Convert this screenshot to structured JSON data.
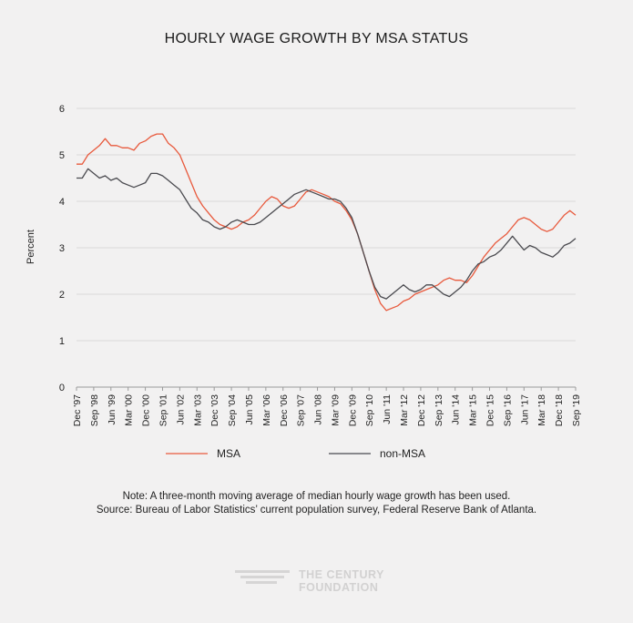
{
  "chart_data": {
    "type": "line",
    "title": "HOURLY WAGE GROWTH BY MSA STATUS",
    "xlabel": "",
    "ylabel": "Percent",
    "ylim": [
      0,
      6
    ],
    "yticks": [
      0,
      1,
      2,
      3,
      4,
      5,
      6
    ],
    "grid": "horizontal",
    "legend_position": "bottom",
    "x_start_index": 0,
    "x_end_index": 261,
    "x_tick_labels": [
      "Dec '97",
      "Sep '98",
      "Jun '99",
      "Mar '00",
      "Dec '00",
      "Sep '01",
      "Jun '02",
      "Mar '03",
      "Dec '03",
      "Sep '04",
      "Jun '05",
      "Mar '06",
      "Dec '06",
      "Sep '07",
      "Jun '08",
      "Mar '09",
      "Dec '09",
      "Sep '10",
      "Jun '11",
      "Mar '12",
      "Dec '12",
      "Sep '13",
      "Jun '14",
      "Mar '15",
      "Dec '15",
      "Sep '16",
      "Jun '17",
      "Mar '18",
      "Dec '18",
      "Sep '19"
    ],
    "series": [
      {
        "name": "MSA",
        "color": "#e8593c",
        "points": [
          [
            0,
            4.8
          ],
          [
            3,
            4.8
          ],
          [
            6,
            5.0
          ],
          [
            9,
            5.1
          ],
          [
            12,
            5.2
          ],
          [
            15,
            5.35
          ],
          [
            18,
            5.2
          ],
          [
            21,
            5.2
          ],
          [
            24,
            5.15
          ],
          [
            27,
            5.15
          ],
          [
            30,
            5.1
          ],
          [
            33,
            5.25
          ],
          [
            36,
            5.3
          ],
          [
            39,
            5.4
          ],
          [
            42,
            5.45
          ],
          [
            45,
            5.45
          ],
          [
            48,
            5.25
          ],
          [
            51,
            5.15
          ],
          [
            54,
            5.0
          ],
          [
            57,
            4.7
          ],
          [
            60,
            4.4
          ],
          [
            63,
            4.1
          ],
          [
            66,
            3.9
          ],
          [
            69,
            3.75
          ],
          [
            72,
            3.6
          ],
          [
            75,
            3.5
          ],
          [
            78,
            3.45
          ],
          [
            81,
            3.4
          ],
          [
            84,
            3.45
          ],
          [
            87,
            3.55
          ],
          [
            90,
            3.6
          ],
          [
            93,
            3.7
          ],
          [
            96,
            3.85
          ],
          [
            99,
            4.0
          ],
          [
            102,
            4.1
          ],
          [
            105,
            4.05
          ],
          [
            108,
            3.9
          ],
          [
            111,
            3.85
          ],
          [
            114,
            3.9
          ],
          [
            117,
            4.05
          ],
          [
            120,
            4.2
          ],
          [
            123,
            4.25
          ],
          [
            126,
            4.2
          ],
          [
            129,
            4.15
          ],
          [
            132,
            4.1
          ],
          [
            135,
            4.0
          ],
          [
            138,
            3.95
          ],
          [
            141,
            3.8
          ],
          [
            144,
            3.6
          ],
          [
            147,
            3.3
          ],
          [
            150,
            2.9
          ],
          [
            153,
            2.5
          ],
          [
            156,
            2.1
          ],
          [
            159,
            1.8
          ],
          [
            162,
            1.65
          ],
          [
            165,
            1.7
          ],
          [
            168,
            1.75
          ],
          [
            171,
            1.85
          ],
          [
            174,
            1.9
          ],
          [
            177,
            2.0
          ],
          [
            180,
            2.05
          ],
          [
            183,
            2.1
          ],
          [
            186,
            2.15
          ],
          [
            189,
            2.2
          ],
          [
            192,
            2.3
          ],
          [
            195,
            2.35
          ],
          [
            198,
            2.3
          ],
          [
            201,
            2.3
          ],
          [
            204,
            2.25
          ],
          [
            207,
            2.4
          ],
          [
            210,
            2.6
          ],
          [
            213,
            2.8
          ],
          [
            216,
            2.95
          ],
          [
            219,
            3.1
          ],
          [
            222,
            3.2
          ],
          [
            225,
            3.3
          ],
          [
            228,
            3.45
          ],
          [
            231,
            3.6
          ],
          [
            234,
            3.65
          ],
          [
            237,
            3.6
          ],
          [
            240,
            3.5
          ],
          [
            243,
            3.4
          ],
          [
            246,
            3.35
          ],
          [
            249,
            3.4
          ],
          [
            252,
            3.55
          ],
          [
            255,
            3.7
          ],
          [
            258,
            3.8
          ],
          [
            261,
            3.7
          ]
        ]
      },
      {
        "name": "non-MSA",
        "color": "#4a4a4f",
        "points": [
          [
            0,
            4.5
          ],
          [
            3,
            4.5
          ],
          [
            6,
            4.7
          ],
          [
            9,
            4.6
          ],
          [
            12,
            4.5
          ],
          [
            15,
            4.55
          ],
          [
            18,
            4.45
          ],
          [
            21,
            4.5
          ],
          [
            24,
            4.4
          ],
          [
            27,
            4.35
          ],
          [
            30,
            4.3
          ],
          [
            33,
            4.35
          ],
          [
            36,
            4.4
          ],
          [
            39,
            4.6
          ],
          [
            42,
            4.6
          ],
          [
            45,
            4.55
          ],
          [
            48,
            4.45
          ],
          [
            51,
            4.35
          ],
          [
            54,
            4.25
          ],
          [
            57,
            4.05
          ],
          [
            60,
            3.85
          ],
          [
            63,
            3.75
          ],
          [
            66,
            3.6
          ],
          [
            69,
            3.55
          ],
          [
            72,
            3.45
          ],
          [
            75,
            3.4
          ],
          [
            78,
            3.45
          ],
          [
            81,
            3.55
          ],
          [
            84,
            3.6
          ],
          [
            87,
            3.55
          ],
          [
            90,
            3.5
          ],
          [
            93,
            3.5
          ],
          [
            96,
            3.55
          ],
          [
            99,
            3.65
          ],
          [
            102,
            3.75
          ],
          [
            105,
            3.85
          ],
          [
            108,
            3.95
          ],
          [
            111,
            4.05
          ],
          [
            114,
            4.15
          ],
          [
            117,
            4.2
          ],
          [
            120,
            4.25
          ],
          [
            123,
            4.2
          ],
          [
            126,
            4.15
          ],
          [
            129,
            4.1
          ],
          [
            132,
            4.05
          ],
          [
            135,
            4.05
          ],
          [
            138,
            4.0
          ],
          [
            141,
            3.85
          ],
          [
            144,
            3.65
          ],
          [
            147,
            3.3
          ],
          [
            150,
            2.9
          ],
          [
            153,
            2.5
          ],
          [
            156,
            2.15
          ],
          [
            159,
            1.95
          ],
          [
            162,
            1.9
          ],
          [
            165,
            2.0
          ],
          [
            168,
            2.1
          ],
          [
            171,
            2.2
          ],
          [
            174,
            2.1
          ],
          [
            177,
            2.05
          ],
          [
            180,
            2.1
          ],
          [
            183,
            2.2
          ],
          [
            186,
            2.2
          ],
          [
            189,
            2.1
          ],
          [
            192,
            2.0
          ],
          [
            195,
            1.95
          ],
          [
            198,
            2.05
          ],
          [
            201,
            2.15
          ],
          [
            204,
            2.3
          ],
          [
            207,
            2.5
          ],
          [
            210,
            2.65
          ],
          [
            213,
            2.7
          ],
          [
            216,
            2.8
          ],
          [
            219,
            2.85
          ],
          [
            222,
            2.95
          ],
          [
            225,
            3.1
          ],
          [
            228,
            3.25
          ],
          [
            231,
            3.1
          ],
          [
            234,
            2.95
          ],
          [
            237,
            3.05
          ],
          [
            240,
            3.0
          ],
          [
            243,
            2.9
          ],
          [
            246,
            2.85
          ],
          [
            249,
            2.8
          ],
          [
            252,
            2.9
          ],
          [
            255,
            3.05
          ],
          [
            258,
            3.1
          ],
          [
            261,
            3.2
          ]
        ]
      }
    ]
  },
  "notes": {
    "line1": "Note: A three-month moving average of median hourly wage growth has been used.",
    "line2": "Source: Bureau of Labor Statistics’ current population survey, Federal Reserve Bank of Atlanta."
  },
  "logo": {
    "line1": "THE CENTURY",
    "line2": "FOUNDATION"
  }
}
